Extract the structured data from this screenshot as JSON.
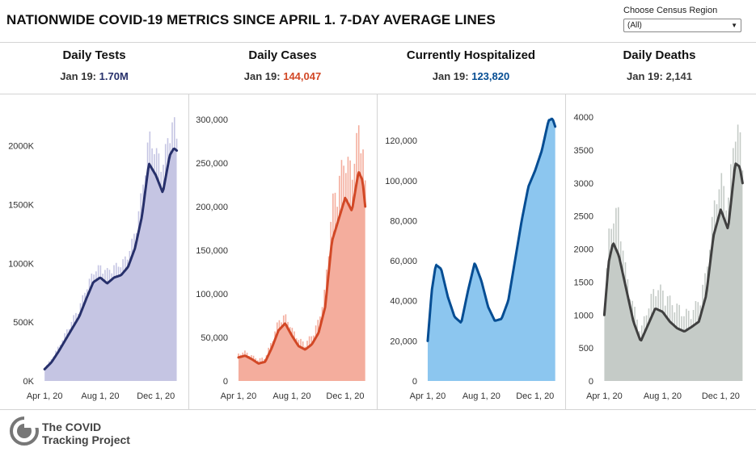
{
  "title": "NATIONWIDE COVID-19 METRICS SINCE APRIL 1. 7-DAY AVERAGE LINES",
  "region_filter": {
    "label": "Choose Census Region",
    "selected": "(All)"
  },
  "brand": {
    "line1": "The COVID",
    "line2": "Tracking Project"
  },
  "chart_data": [
    {
      "type": "bar",
      "title": "Daily Tests",
      "latest_label": "Jan 19:",
      "latest_value": "1.70M",
      "accent_color": "#27306b",
      "bar_color": "#c5c5e3",
      "ylim": [
        0,
        2300000
      ],
      "yticks": [
        0,
        500000,
        1000000,
        1500000,
        2000000
      ],
      "ytick_labels": [
        "0K",
        "500K",
        "1000K",
        "1500K",
        "2000K"
      ],
      "xticks": [
        0,
        4,
        8
      ],
      "xtick_labels": [
        "Apr 1, 20",
        "Aug 1, 20",
        "Dec 1, 20"
      ],
      "x_range": [
        -0.3,
        9.7
      ],
      "avg_x": [
        0,
        0.5,
        1,
        1.5,
        2,
        2.5,
        3,
        3.5,
        4,
        4.5,
        5,
        5.5,
        6,
        6.5,
        7,
        7.5,
        8,
        8.5,
        9,
        9.3,
        9.5
      ],
      "avg_y": [
        100000,
        160000,
        250000,
        350000,
        450000,
        550000,
        700000,
        840000,
        880000,
        830000,
        880000,
        900000,
        970000,
        1130000,
        1400000,
        1850000,
        1750000,
        1600000,
        1920000,
        1980000,
        1960000
      ],
      "peak_y": [
        110000,
        200000,
        300000,
        420000,
        540000,
        650000,
        820000,
        950000,
        1000000,
        960000,
        1000000,
        1020000,
        1100000,
        1300000,
        1650000,
        2150000,
        2000000,
        1900000,
        2200000,
        2280000,
        2100000
      ]
    },
    {
      "type": "bar",
      "title": "Daily Cases",
      "latest_label": "Jan 19:",
      "latest_value": "144,047",
      "accent_color": "#d24826",
      "bar_color": "#f4ad9d",
      "ylim": [
        0,
        310000
      ],
      "yticks": [
        0,
        50000,
        100000,
        150000,
        200000,
        250000,
        300000
      ],
      "ytick_labels": [
        "0",
        "50,000",
        "100,000",
        "150,000",
        "200,000",
        "250,000",
        "300,000"
      ],
      "xticks": [
        0,
        4,
        8
      ],
      "xtick_labels": [
        "Apr 1, 20",
        "Aug 1, 20",
        "Dec 1, 20"
      ],
      "x_range": [
        -0.3,
        9.7
      ],
      "avg_x": [
        0,
        0.5,
        1,
        1.5,
        2,
        2.5,
        3,
        3.5,
        4,
        4.5,
        5,
        5.5,
        6,
        6.5,
        7,
        7.5,
        8,
        8.5,
        9,
        9.3,
        9.5
      ],
      "avg_y": [
        27000,
        29000,
        25000,
        20000,
        22000,
        38000,
        58000,
        66000,
        52000,
        40000,
        36000,
        42000,
        55000,
        85000,
        160000,
        185000,
        210000,
        195000,
        240000,
        230000,
        200000
      ],
      "peak_y": [
        32000,
        35000,
        30000,
        26000,
        28000,
        48000,
        72000,
        78000,
        62000,
        50000,
        45000,
        55000,
        72000,
        110000,
        210000,
        240000,
        270000,
        250000,
        300000,
        290000,
        230000
      ]
    },
    {
      "type": "bar",
      "title": "Currently Hospitalized",
      "latest_label": "Jan 19:",
      "latest_value": "123,820",
      "accent_color": "#054d93",
      "bar_color": "#8cc6ef",
      "ylim": [
        0,
        135000
      ],
      "yticks": [
        0,
        20000,
        40000,
        60000,
        80000,
        100000,
        120000
      ],
      "ytick_labels": [
        "0",
        "20,000",
        "40,000",
        "60,000",
        "80,000",
        "100,000",
        "120,000"
      ],
      "xticks": [
        0,
        4,
        8
      ],
      "xtick_labels": [
        "Apr 1, 20",
        "Aug 1, 20",
        "Dec 1, 20"
      ],
      "x_range": [
        -0.3,
        9.7
      ],
      "avg_x": [
        0,
        0.3,
        0.6,
        1,
        1.5,
        2,
        2.5,
        3,
        3.5,
        4,
        4.5,
        5,
        5.5,
        6,
        6.5,
        7,
        7.5,
        8,
        8.5,
        9,
        9.3,
        9.5
      ],
      "avg_y": [
        20000,
        45000,
        58000,
        56000,
        42000,
        32000,
        29000,
        45000,
        59000,
        50000,
        37000,
        30000,
        31000,
        40000,
        60000,
        80000,
        97000,
        105000,
        115000,
        130000,
        131000,
        127000
      ],
      "peak_y": [
        21000,
        46000,
        59000,
        57000,
        43000,
        33000,
        30000,
        46000,
        60000,
        51000,
        38000,
        31000,
        32000,
        41000,
        61000,
        81000,
        98000,
        106000,
        116000,
        131000,
        132000,
        128000
      ]
    },
    {
      "type": "bar",
      "title": "Daily Deaths",
      "latest_label": "Jan 19:",
      "latest_value": "2,141",
      "accent_color": "#404040",
      "bar_color": "#c5cbc7",
      "ylim": [
        0,
        4100
      ],
      "yticks": [
        0,
        500,
        1000,
        1500,
        2000,
        2500,
        3000,
        3500,
        4000
      ],
      "ytick_labels": [
        "0",
        "500",
        "1000",
        "1500",
        "2000",
        "2500",
        "3000",
        "3500",
        "4000"
      ],
      "xticks": [
        0,
        4,
        8
      ],
      "xtick_labels": [
        "Apr 1, 20",
        "Aug 1, 20",
        "Dec 1, 20"
      ],
      "x_range": [
        -0.3,
        9.7
      ],
      "avg_x": [
        0,
        0.3,
        0.6,
        1,
        1.5,
        2,
        2.5,
        3,
        3.5,
        4,
        4.5,
        5,
        5.5,
        6,
        6.5,
        7,
        7.5,
        8,
        8.5,
        9,
        9.3,
        9.5
      ],
      "avg_y": [
        1000,
        1800,
        2100,
        1900,
        1400,
        900,
        600,
        850,
        1100,
        1050,
        900,
        800,
        750,
        820,
        900,
        1300,
        2200,
        2600,
        2300,
        3300,
        3250,
        3000
      ],
      "peak_y": [
        1100,
        2300,
        2600,
        2700,
        1700,
        1200,
        800,
        1200,
        1500,
        1450,
        1300,
        1200,
        1100,
        1100,
        1300,
        1700,
        2700,
        3200,
        2800,
        4050,
        3900,
        3300
      ]
    }
  ]
}
